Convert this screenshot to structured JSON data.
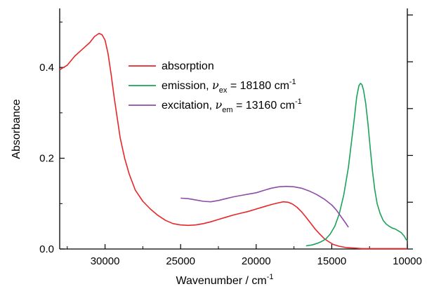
{
  "chart_data": {
    "type": "line",
    "title": "",
    "xlabel": "Wavenumber / cm",
    "xlabel_sup": "-1",
    "ylabel": "Absorbance",
    "xlim": [
      33000,
      10000
    ],
    "ylim": [
      0.0,
      0.53
    ],
    "x_reversed": true,
    "x_ticks": [
      30000,
      25000,
      20000,
      15000,
      10000
    ],
    "x_tick_labels": [
      "30000",
      "25000",
      "20000",
      "15000",
      "10000"
    ],
    "y_ticks": [
      0.0,
      0.2,
      0.4
    ],
    "y_tick_labels": [
      "0.0",
      "0.2",
      "0.4"
    ],
    "right_axis_unlabeled_ticks": 6,
    "grid": false,
    "legend_placement": "top-center",
    "legend": [
      {
        "key": "absorption",
        "pre": "absorption",
        "nu": "",
        "sub": "",
        "mid": "",
        "sup": ""
      },
      {
        "key": "emission",
        "pre": "emission, ",
        "nu": "ν",
        "sub": "ex",
        "mid": " =  18180 cm",
        "sup": "-1"
      },
      {
        "key": "excitation",
        "pre": "excitation, ",
        "nu": "ν",
        "sub": "em",
        "mid": " =  13160 cm",
        "sup": "-1"
      }
    ],
    "series": [
      {
        "key": "absorption",
        "color": "#e8262a",
        "points": [
          [
            33000,
            0.395
          ],
          [
            32500,
            0.405
          ],
          [
            32000,
            0.425
          ],
          [
            31500,
            0.44
          ],
          [
            31000,
            0.455
          ],
          [
            30700,
            0.468
          ],
          [
            30400,
            0.475
          ],
          [
            30200,
            0.472
          ],
          [
            30000,
            0.46
          ],
          [
            29800,
            0.43
          ],
          [
            29600,
            0.385
          ],
          [
            29400,
            0.335
          ],
          [
            29200,
            0.29
          ],
          [
            29000,
            0.245
          ],
          [
            28700,
            0.2
          ],
          [
            28400,
            0.165
          ],
          [
            28000,
            0.13
          ],
          [
            27500,
            0.105
          ],
          [
            27000,
            0.088
          ],
          [
            26500,
            0.074
          ],
          [
            26000,
            0.063
          ],
          [
            25500,
            0.056
          ],
          [
            25000,
            0.053
          ],
          [
            24500,
            0.052
          ],
          [
            24000,
            0.053
          ],
          [
            23500,
            0.056
          ],
          [
            23000,
            0.06
          ],
          [
            22500,
            0.065
          ],
          [
            22000,
            0.07
          ],
          [
            21500,
            0.075
          ],
          [
            21000,
            0.079
          ],
          [
            20500,
            0.083
          ],
          [
            20000,
            0.088
          ],
          [
            19500,
            0.093
          ],
          [
            19000,
            0.098
          ],
          [
            18500,
            0.102
          ],
          [
            18200,
            0.104
          ],
          [
            17900,
            0.103
          ],
          [
            17600,
            0.099
          ],
          [
            17300,
            0.092
          ],
          [
            17000,
            0.082
          ],
          [
            16700,
            0.07
          ],
          [
            16400,
            0.057
          ],
          [
            16100,
            0.044
          ],
          [
            15800,
            0.033
          ],
          [
            15500,
            0.023
          ],
          [
            15200,
            0.016
          ],
          [
            14900,
            0.01
          ],
          [
            14500,
            0.006
          ],
          [
            14000,
            0.003
          ],
          [
            13500,
            0.002
          ],
          [
            13000,
            0.001
          ],
          [
            12500,
            0.001
          ],
          [
            12000,
            0.001
          ],
          [
            11500,
            0.001
          ],
          [
            11000,
            0.001
          ],
          [
            10500,
            0.001
          ],
          [
            10000,
            0.001
          ]
        ]
      },
      {
        "key": "emission",
        "color": "#1aa35a",
        "points": [
          [
            16700,
            0.007
          ],
          [
            16300,
            0.009
          ],
          [
            16000,
            0.012
          ],
          [
            15700,
            0.016
          ],
          [
            15400,
            0.022
          ],
          [
            15100,
            0.033
          ],
          [
            14800,
            0.05
          ],
          [
            14500,
            0.078
          ],
          [
            14200,
            0.12
          ],
          [
            13900,
            0.18
          ],
          [
            13700,
            0.235
          ],
          [
            13500,
            0.29
          ],
          [
            13350,
            0.335
          ],
          [
            13200,
            0.36
          ],
          [
            13100,
            0.365
          ],
          [
            13000,
            0.362
          ],
          [
            12900,
            0.35
          ],
          [
            12750,
            0.32
          ],
          [
            12600,
            0.275
          ],
          [
            12450,
            0.22
          ],
          [
            12300,
            0.17
          ],
          [
            12150,
            0.13
          ],
          [
            12000,
            0.1
          ],
          [
            11800,
            0.078
          ],
          [
            11600,
            0.063
          ],
          [
            11400,
            0.055
          ],
          [
            11200,
            0.05
          ],
          [
            11000,
            0.046
          ],
          [
            10800,
            0.044
          ],
          [
            10600,
            0.04
          ],
          [
            10400,
            0.036
          ],
          [
            10200,
            0.028
          ],
          [
            10100,
            0.022
          ],
          [
            10000,
            0.018
          ]
        ]
      },
      {
        "key": "excitation",
        "color": "#8e4ca6",
        "points": [
          [
            25000,
            0.112
          ],
          [
            24500,
            0.111
          ],
          [
            24000,
            0.108
          ],
          [
            23500,
            0.105
          ],
          [
            23000,
            0.104
          ],
          [
            22500,
            0.107
          ],
          [
            22000,
            0.111
          ],
          [
            21500,
            0.115
          ],
          [
            21000,
            0.118
          ],
          [
            20500,
            0.121
          ],
          [
            20000,
            0.124
          ],
          [
            19500,
            0.129
          ],
          [
            19000,
            0.134
          ],
          [
            18500,
            0.137
          ],
          [
            18000,
            0.138
          ],
          [
            17500,
            0.137
          ],
          [
            17000,
            0.134
          ],
          [
            16500,
            0.128
          ],
          [
            16000,
            0.12
          ],
          [
            15500,
            0.11
          ],
          [
            15000,
            0.097
          ],
          [
            14700,
            0.086
          ],
          [
            14400,
            0.072
          ],
          [
            14100,
            0.058
          ],
          [
            13900,
            0.048
          ]
        ]
      }
    ]
  }
}
